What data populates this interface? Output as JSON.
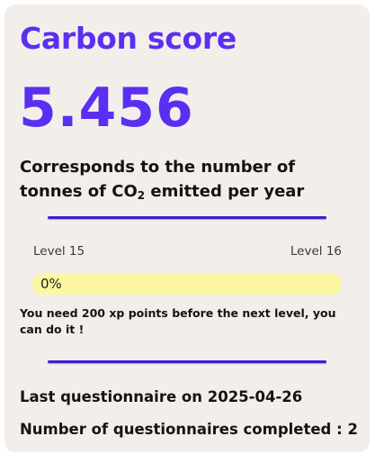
{
  "card": {
    "title": "Carbon score",
    "score": "5.456",
    "description": {
      "before": "Corresponds to the number of tonnes of CO",
      "subscript": "2",
      "after": " emitted per year"
    },
    "levels": {
      "current": "Level 15",
      "next": "Level 16"
    },
    "progress": {
      "value": 0,
      "label": "0%"
    },
    "hint": "You need 200 xp points before the next level, you can do it !",
    "last_questionnaire": "Last questionnaire on 2025-04-26",
    "questionnaires_completed": "Number of questionnaires completed : 2"
  },
  "colors": {
    "accent": "#5b2ff2",
    "divider": "#3a1fd4",
    "card_background": "#f2efea",
    "progress_track": "#fdf7a2",
    "progress_fill": "#f3e35b",
    "text": "#141414"
  }
}
